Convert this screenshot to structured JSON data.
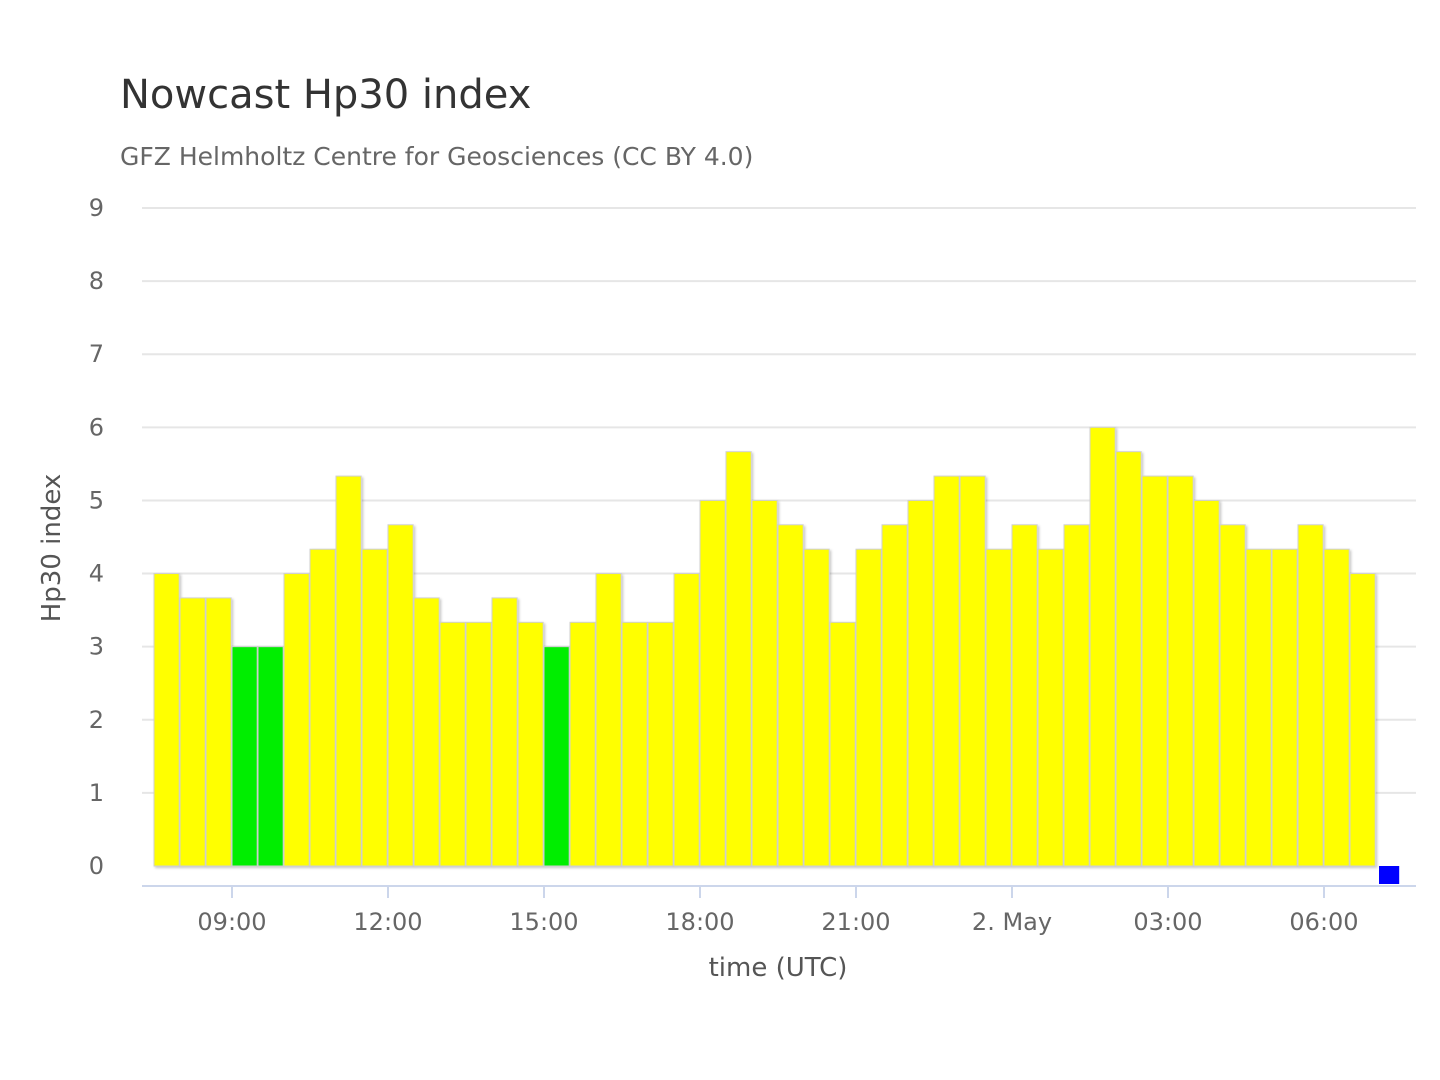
{
  "chart_data": {
    "type": "bar",
    "title": "Nowcast Hp30 index",
    "subtitle": "GFZ Helmholtz Centre for Geosciences (CC BY 4.0)",
    "xlabel": "time (UTC)",
    "ylabel": "Hp30 index",
    "ylim": [
      0,
      9
    ],
    "yticks": [
      "0",
      "1",
      "2",
      "3",
      "4",
      "5",
      "6",
      "7",
      "8",
      "9"
    ],
    "xticks": [
      {
        "label": "09:00",
        "at": "09:00"
      },
      {
        "label": "12:00",
        "at": "12:00"
      },
      {
        "label": "15:00",
        "at": "15:00"
      },
      {
        "label": "18:00",
        "at": "18:00"
      },
      {
        "label": "21:00",
        "at": "21:00"
      },
      {
        "label": "2. May",
        "at": "00:00"
      },
      {
        "label": "03:00",
        "at": "03:00"
      },
      {
        "label": "06:00",
        "at": "06:00"
      }
    ],
    "grid": true,
    "legend": "none",
    "interval_minutes": 30,
    "bars": [
      {
        "start": "07:30",
        "value": 4.0,
        "color": "#ffff00"
      },
      {
        "start": "08:00",
        "value": 3.667,
        "color": "#ffff00"
      },
      {
        "start": "08:30",
        "value": 3.667,
        "color": "#ffff00"
      },
      {
        "start": "09:00",
        "value": 3.0,
        "color": "#00ee00"
      },
      {
        "start": "09:30",
        "value": 3.0,
        "color": "#00ee00"
      },
      {
        "start": "10:00",
        "value": 4.0,
        "color": "#ffff00"
      },
      {
        "start": "10:30",
        "value": 4.333,
        "color": "#ffff00"
      },
      {
        "start": "11:00",
        "value": 5.333,
        "color": "#ffff00"
      },
      {
        "start": "11:30",
        "value": 4.333,
        "color": "#ffff00"
      },
      {
        "start": "12:00",
        "value": 4.667,
        "color": "#ffff00"
      },
      {
        "start": "12:30",
        "value": 3.667,
        "color": "#ffff00"
      },
      {
        "start": "13:00",
        "value": 3.333,
        "color": "#ffff00"
      },
      {
        "start": "13:30",
        "value": 3.333,
        "color": "#ffff00"
      },
      {
        "start": "14:00",
        "value": 3.667,
        "color": "#ffff00"
      },
      {
        "start": "14:30",
        "value": 3.333,
        "color": "#ffff00"
      },
      {
        "start": "15:00",
        "value": 3.0,
        "color": "#00ee00"
      },
      {
        "start": "15:30",
        "value": 3.333,
        "color": "#ffff00"
      },
      {
        "start": "16:00",
        "value": 4.0,
        "color": "#ffff00"
      },
      {
        "start": "16:30",
        "value": 3.333,
        "color": "#ffff00"
      },
      {
        "start": "17:00",
        "value": 3.333,
        "color": "#ffff00"
      },
      {
        "start": "17:30",
        "value": 4.0,
        "color": "#ffff00"
      },
      {
        "start": "18:00",
        "value": 5.0,
        "color": "#ffff00"
      },
      {
        "start": "18:30",
        "value": 5.667,
        "color": "#ffff00"
      },
      {
        "start": "19:00",
        "value": 5.0,
        "color": "#ffff00"
      },
      {
        "start": "19:30",
        "value": 4.667,
        "color": "#ffff00"
      },
      {
        "start": "20:00",
        "value": 4.333,
        "color": "#ffff00"
      },
      {
        "start": "20:30",
        "value": 3.333,
        "color": "#ffff00"
      },
      {
        "start": "21:00",
        "value": 4.333,
        "color": "#ffff00"
      },
      {
        "start": "21:30",
        "value": 4.667,
        "color": "#ffff00"
      },
      {
        "start": "22:00",
        "value": 5.0,
        "color": "#ffff00"
      },
      {
        "start": "22:30",
        "value": 5.333,
        "color": "#ffff00"
      },
      {
        "start": "23:00",
        "value": 5.333,
        "color": "#ffff00"
      },
      {
        "start": "23:30",
        "value": 4.333,
        "color": "#ffff00"
      },
      {
        "start": "00:00",
        "value": 4.667,
        "color": "#ffff00"
      },
      {
        "start": "00:30",
        "value": 4.333,
        "color": "#ffff00"
      },
      {
        "start": "01:00",
        "value": 4.667,
        "color": "#ffff00"
      },
      {
        "start": "01:30",
        "value": 6.0,
        "color": "#ffff00"
      },
      {
        "start": "02:00",
        "value": 5.667,
        "color": "#ffff00"
      },
      {
        "start": "02:30",
        "value": 5.333,
        "color": "#ffff00"
      },
      {
        "start": "03:00",
        "value": 5.333,
        "color": "#ffff00"
      },
      {
        "start": "03:30",
        "value": 5.0,
        "color": "#ffff00"
      },
      {
        "start": "04:00",
        "value": 4.667,
        "color": "#ffff00"
      },
      {
        "start": "04:30",
        "value": 4.333,
        "color": "#ffff00"
      },
      {
        "start": "05:00",
        "value": 4.333,
        "color": "#ffff00"
      },
      {
        "start": "05:30",
        "value": 4.667,
        "color": "#ffff00"
      },
      {
        "start": "06:00",
        "value": 4.333,
        "color": "#ffff00"
      },
      {
        "start": "06:30",
        "value": 4.0,
        "color": "#ffff00"
      },
      {
        "start": "07:00",
        "value": 0,
        "color": "#0000ff"
      }
    ]
  }
}
